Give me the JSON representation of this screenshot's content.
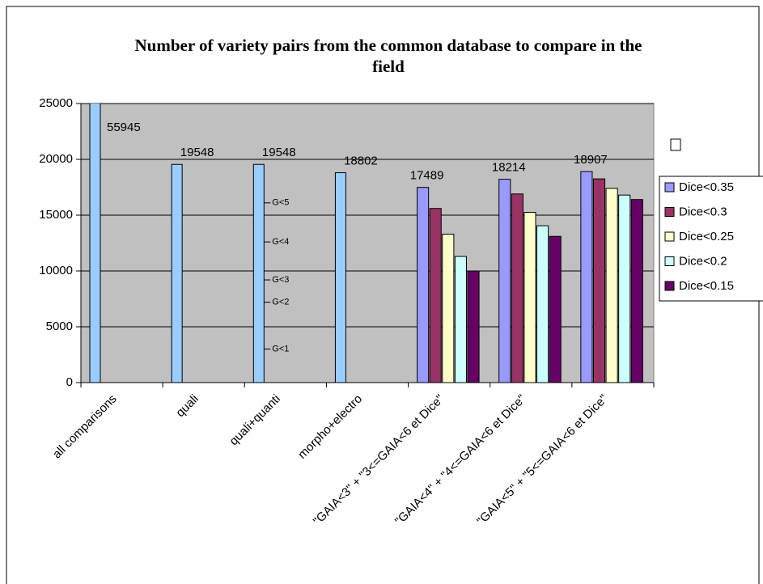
{
  "chart_data": {
    "type": "bar",
    "title": "Number of variety pairs from the common database to compare in the field",
    "categories": [
      "all comparisons",
      "quali",
      "quali+quanti",
      "morpho+electro",
      "\"GAIA<3\" + \"3<=GAIA<6 et Dice\"",
      "\"GAIA<4\" + \"4<=GAIA<6 et Dice\"",
      "\"GAIA<5\" + \"5<=GAIA<6 et Dice\""
    ],
    "series": [
      {
        "color": "#99ccff",
        "values": [
          55945,
          19548,
          19548,
          18802,
          null,
          null,
          null
        ],
        "value_labels": [
          "55945",
          "19548",
          "19548",
          "18802",
          null,
          null,
          null
        ]
      },
      {
        "name": "Dice<0.35",
        "color": "#9999ff",
        "values": [
          null,
          null,
          null,
          null,
          17489,
          18214,
          18907
        ],
        "value_labels": [
          null,
          null,
          null,
          null,
          "17489",
          "18214",
          "18907"
        ]
      },
      {
        "name": "Dice<0.3",
        "color": "#993366",
        "values": [
          null,
          null,
          null,
          null,
          15600,
          16900,
          18250
        ]
      },
      {
        "name": "Dice<0.25",
        "color": "#ffffcc",
        "values": [
          null,
          null,
          null,
          null,
          13300,
          15250,
          17400
        ]
      },
      {
        "name": "Dice<0.2",
        "color": "#ccffff",
        "values": [
          null,
          null,
          null,
          null,
          11300,
          14050,
          16800
        ]
      },
      {
        "name": "Dice<0.15",
        "color": "#660066",
        "values": [
          null,
          null,
          null,
          null,
          10000,
          13100,
          16400
        ]
      }
    ],
    "annotations": [
      {
        "text": "G<5",
        "value": 16100
      },
      {
        "text": "G<4",
        "value": 12600
      },
      {
        "text": "G<3",
        "value": 9200
      },
      {
        "text": "G<2",
        "value": 7200
      },
      {
        "text": "G<1",
        "value": 3000
      }
    ],
    "ylim": [
      0,
      25000
    ],
    "yticks": [
      0,
      5000,
      10000,
      15000,
      20000,
      25000
    ],
    "grid": true,
    "legend": "right"
  }
}
